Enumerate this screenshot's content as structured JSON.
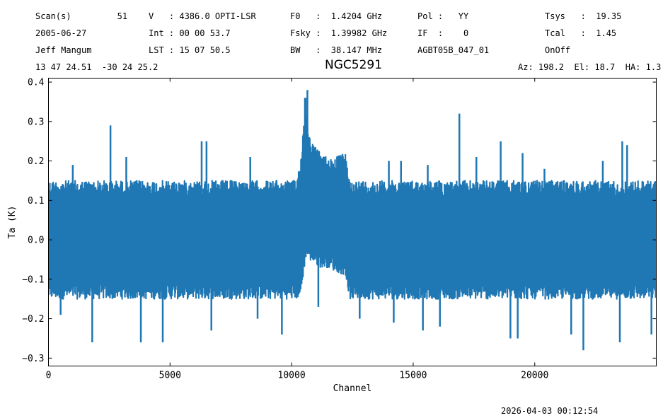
{
  "header": {
    "col1": [
      "Scan(s)         51",
      "2005-06-27",
      "Jeff Mangum",
      "13 47 24.51  -30 24 25.2"
    ],
    "col2": [
      "V   : 4386.0 OPTI-LSR",
      "Int : 00 00 53.7",
      "LST : 15 07 50.5"
    ],
    "col3": [
      "F0   :  1.4204 GHz",
      "Fsky :  1.39982 GHz",
      "BW   :  38.147 MHz"
    ],
    "col4": [
      "Pol :   YY",
      "IF  :    0",
      "AGBT05B_047_01"
    ],
    "col5": [
      "Tsys   :  19.35",
      "Tcal   :  1.45",
      "OnOff"
    ],
    "azel": "Az: 198.2  El: 18.7  HA: 1.3"
  },
  "footer": {
    "timestamp": "2026-04-03 00:12:54"
  },
  "chart_data": {
    "type": "line",
    "title": "NGC5291",
    "xlabel": "Channel",
    "ylabel": "Ta (K)",
    "xlim": [
      0,
      24999
    ],
    "ylim": [
      -0.32,
      0.41
    ],
    "xticks": [
      0,
      5000,
      10000,
      15000,
      20000
    ],
    "yticks": [
      -0.3,
      -0.2,
      -0.1,
      0.0,
      0.1,
      0.2,
      0.3,
      0.4
    ],
    "ytick_labels": [
      "−0.3",
      "−0.2",
      "−0.1",
      "0.0",
      "0.1",
      "0.2",
      "0.3",
      "0.4"
    ],
    "line_color": "#1f77b4",
    "noise_envelope": {
      "channels": [
        0,
        10200,
        10400,
        10500,
        10600,
        10700,
        10900,
        11200,
        11500,
        11800,
        12200,
        12400,
        24999
      ],
      "upper": [
        0.15,
        0.15,
        0.22,
        0.3,
        0.33,
        0.27,
        0.24,
        0.22,
        0.21,
        0.21,
        0.22,
        0.15,
        0.15
      ],
      "lower": [
        -0.15,
        -0.15,
        -0.14,
        -0.08,
        -0.04,
        -0.05,
        -0.06,
        -0.07,
        -0.07,
        -0.08,
        -0.09,
        -0.15,
        -0.15
      ]
    },
    "spikes": [
      {
        "x": 10550,
        "y": 0.36
      },
      {
        "x": 10650,
        "y": 0.38
      },
      {
        "x": 10580,
        "y": 0.36
      },
      {
        "x": 16900,
        "y": 0.32
      },
      {
        "x": 2550,
        "y": 0.29
      },
      {
        "x": 6300,
        "y": 0.25
      },
      {
        "x": 6500,
        "y": 0.25
      },
      {
        "x": 23600,
        "y": 0.25
      },
      {
        "x": 23800,
        "y": 0.24
      },
      {
        "x": 18600,
        "y": 0.25
      },
      {
        "x": 19500,
        "y": 0.22
      },
      {
        "x": 1000,
        "y": 0.19
      },
      {
        "x": 3200,
        "y": 0.21
      },
      {
        "x": 8300,
        "y": 0.21
      },
      {
        "x": 14000,
        "y": 0.2
      },
      {
        "x": 14500,
        "y": 0.2
      },
      {
        "x": 15600,
        "y": 0.19
      },
      {
        "x": 17600,
        "y": 0.21
      },
      {
        "x": 20400,
        "y": 0.18
      },
      {
        "x": 22800,
        "y": 0.2
      },
      {
        "x": 1800,
        "y": -0.26
      },
      {
        "x": 3800,
        "y": -0.26
      },
      {
        "x": 4700,
        "y": -0.26
      },
      {
        "x": 6700,
        "y": -0.23
      },
      {
        "x": 9600,
        "y": -0.24
      },
      {
        "x": 11100,
        "y": -0.17
      },
      {
        "x": 14200,
        "y": -0.21
      },
      {
        "x": 15400,
        "y": -0.23
      },
      {
        "x": 16100,
        "y": -0.22
      },
      {
        "x": 19000,
        "y": -0.25
      },
      {
        "x": 19300,
        "y": -0.25
      },
      {
        "x": 21500,
        "y": -0.24
      },
      {
        "x": 22000,
        "y": -0.28
      },
      {
        "x": 23500,
        "y": -0.26
      },
      {
        "x": 24800,
        "y": -0.24
      },
      {
        "x": 500,
        "y": -0.19
      },
      {
        "x": 8600,
        "y": -0.2
      },
      {
        "x": 12800,
        "y": -0.2
      }
    ]
  }
}
